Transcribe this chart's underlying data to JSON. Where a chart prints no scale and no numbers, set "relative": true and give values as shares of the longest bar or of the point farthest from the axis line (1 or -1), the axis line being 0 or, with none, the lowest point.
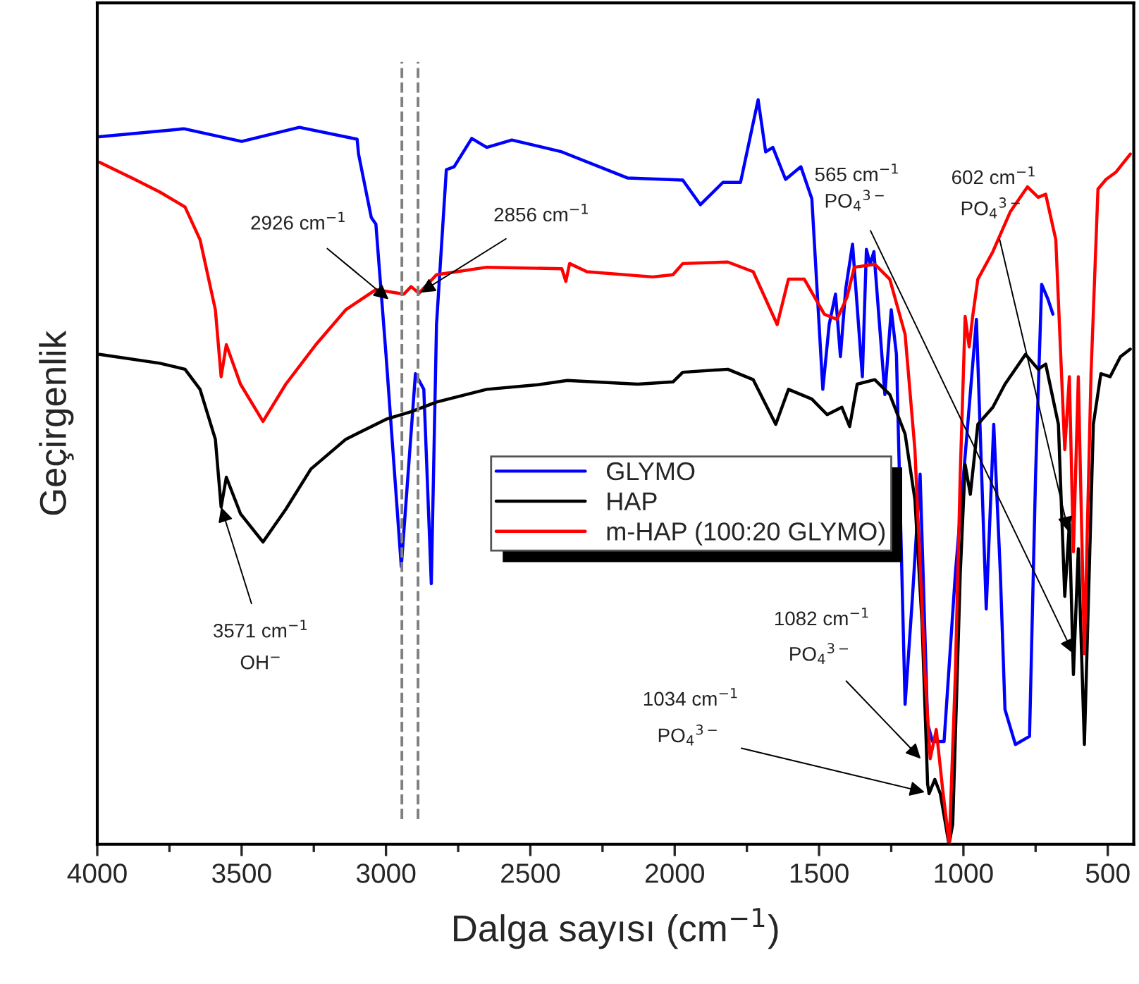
{
  "chart_data": {
    "type": "line",
    "relative": true,
    "xlabel": "Dalga sayısı (cm$^{−1}$)",
    "ylabel": "Geçirgenlik",
    "xlim": [
      4000,
      410
    ],
    "xticks": [
      4000,
      3500,
      3000,
      2500,
      2000,
      1500,
      1000,
      500
    ],
    "tick_labels": "x",
    "grid": false,
    "legend": "center",
    "line_style": "solid",
    "marker": "none",
    "series": [
      {
        "name": "GLYMO",
        "color": "#0000ff",
        "x": [
          4000,
          3700,
          3500,
          3300,
          3100,
          3095,
          3051,
          3035,
          3000,
          2947,
          2898,
          2869,
          2843,
          2825,
          2791,
          2764,
          2703,
          2651,
          2564,
          2391,
          2164,
          1972,
          1911,
          1833,
          1772,
          1711,
          1685,
          1660,
          1616,
          1563,
          1525,
          1487,
          1465,
          1443,
          1426,
          1408,
          1384,
          1350,
          1336,
          1323,
          1310,
          1272,
          1250,
          1232,
          1202,
          1177,
          1150,
          1124,
          1107,
          1067,
          1028,
          985,
          955,
          921,
          895,
          872,
          856,
          820,
          771,
          750,
          729,
          707,
          690
        ],
        "values": [
          0.95,
          0.961,
          0.944,
          0.963,
          0.947,
          0.927,
          0.842,
          0.833,
          0.658,
          0.373,
          0.632,
          0.611,
          0.35,
          0.698,
          0.906,
          0.91,
          0.948,
          0.936,
          0.946,
          0.93,
          0.895,
          0.892,
          0.859,
          0.889,
          0.889,
          1.0,
          0.93,
          0.936,
          0.893,
          0.91,
          0.867,
          0.611,
          0.698,
          0.739,
          0.655,
          0.745,
          0.806,
          0.628,
          0.799,
          0.779,
          0.796,
          0.604,
          0.718,
          0.658,
          0.188,
          0.329,
          0.497,
          0.162,
          0.138,
          0.138,
          0.363,
          0.564,
          0.705,
          0.316,
          0.564,
          0.363,
          0.181,
          0.134,
          0.145,
          0.497,
          0.752,
          0.732,
          0.712
        ]
      },
      {
        "name": "HAP",
        "color": "#000000",
        "x": [
          3992,
          3783,
          3696,
          3644,
          3591,
          3571,
          3553,
          3504,
          3426,
          3347,
          3260,
          3139,
          2999,
          2913,
          2825,
          2651,
          2479,
          2372,
          2128,
          2006,
          1972,
          1816,
          1728,
          1650,
          1606,
          1525,
          1472,
          1421,
          1394,
          1368,
          1307,
          1255,
          1202,
          1168,
          1143,
          1124,
          1119,
          1099,
          1080,
          1050,
          1037,
          1011,
          994,
          976,
          950,
          898,
          856,
          785,
          741,
          715,
          671,
          649,
          633,
          619,
          602,
          581,
          550,
          524,
          492,
          456,
          422
        ],
        "values": [
          0.658,
          0.646,
          0.638,
          0.611,
          0.544,
          0.453,
          0.493,
          0.444,
          0.406,
          0.45,
          0.504,
          0.544,
          0.571,
          0.581,
          0.594,
          0.611,
          0.617,
          0.623,
          0.618,
          0.621,
          0.634,
          0.638,
          0.624,
          0.564,
          0.611,
          0.598,
          0.577,
          0.587,
          0.561,
          0.618,
          0.624,
          0.604,
          0.551,
          0.463,
          0.295,
          0.081,
          0.068,
          0.087,
          0.068,
          0.0,
          0.027,
          0.363,
          0.51,
          0.47,
          0.564,
          0.587,
          0.618,
          0.658,
          0.638,
          0.645,
          0.564,
          0.333,
          0.43,
          0.228,
          0.397,
          0.134,
          0.564,
          0.632,
          0.628,
          0.655,
          0.665
        ]
      },
      {
        "name": "m-HAP (100:20 GLYMO)",
        "color": "#ff0000",
        "x": [
          3992,
          3870,
          3783,
          3696,
          3644,
          3591,
          3571,
          3553,
          3504,
          3426,
          3347,
          3243,
          3139,
          3035,
          2938,
          2913,
          2886,
          2825,
          2651,
          2391,
          2377,
          2364,
          2304,
          2076,
          2006,
          1972,
          1816,
          1728,
          1645,
          1606,
          1551,
          1482,
          1438,
          1403,
          1378,
          1307,
          1255,
          1202,
          1168,
          1133,
          1115,
          1094,
          1072,
          1049,
          1028,
          1011,
          994,
          980,
          968,
          950,
          898,
          837,
          778,
          741,
          715,
          680,
          649,
          633,
          619,
          602,
          581,
          558,
          534,
          506,
          471,
          422
        ],
        "values": [
          0.916,
          0.893,
          0.876,
          0.856,
          0.812,
          0.718,
          0.628,
          0.671,
          0.618,
          0.568,
          0.618,
          0.671,
          0.718,
          0.745,
          0.739,
          0.749,
          0.74,
          0.765,
          0.775,
          0.773,
          0.756,
          0.78,
          0.769,
          0.762,
          0.765,
          0.78,
          0.782,
          0.769,
          0.698,
          0.759,
          0.759,
          0.712,
          0.705,
          0.735,
          0.775,
          0.779,
          0.759,
          0.685,
          0.53,
          0.228,
          0.115,
          0.154,
          0.074,
          0.0,
          0.228,
          0.497,
          0.709,
          0.668,
          0.709,
          0.759,
          0.796,
          0.85,
          0.883,
          0.869,
          0.873,
          0.812,
          0.53,
          0.628,
          0.393,
          0.628,
          0.256,
          0.632,
          0.88,
          0.893,
          0.903,
          0.927
        ]
      }
    ],
    "ref_lines": [
      {
        "axis": "x",
        "value": 2945,
        "color": "#808080",
        "line_style": "dashed"
      },
      {
        "axis": "x",
        "value": 2889,
        "color": "#808080",
        "line_style": "dashed"
      }
    ],
    "annotations": [
      {
        "text": "2926 cm$^{−1}$",
        "x": 2991,
        "y": 0.732
      },
      {
        "text": "2856 cm$^{−1}$",
        "x": 2881,
        "y": 0.741
      },
      {
        "text": "3571 cm$^{−1}$",
        "x": 3571,
        "y": 0.453
      },
      "OH$^{−}$",
      "1034 cm$^{−1}$",
      {
        "text": "PO$_{4}$$^{3−}$",
        "x": 1134,
        "y": 0.07
      },
      "1082 cm$^{−1}$",
      {
        "text": "PO$_{4}$$^{3−}$",
        "x": 1148,
        "y": 0.115
      },
      "565 cm$^{−1}$",
      {
        "text": "PO$_{4}$$^{3−}$",
        "x": 619,
        "y": 0.256
      },
      "602 cm$^{−1}$",
      {
        "text": "PO$_{4}$$^{3−}$",
        "x": 636,
        "y": 0.42
      }
    ]
  }
}
